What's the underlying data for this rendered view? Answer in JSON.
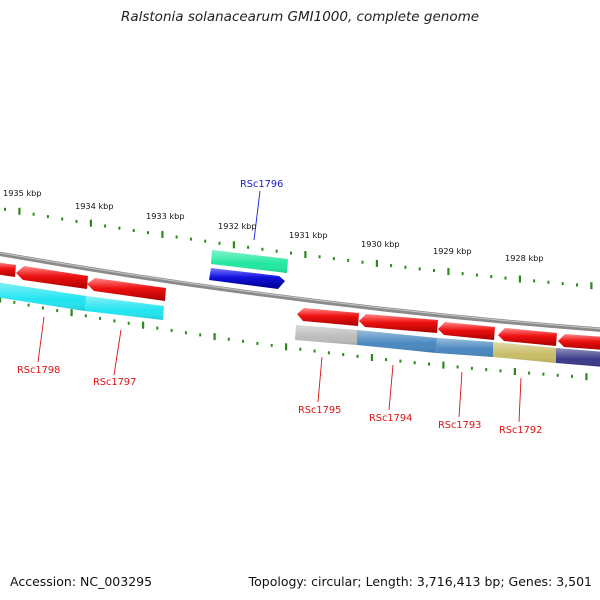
{
  "title": "Ralstonia solanacearum GMI1000, complete genome",
  "footer": {
    "accession": "Accession: NC_003295",
    "summary": "Topology: circular; Length: 3,716,413 bp; Genes: 3,501"
  },
  "colors": {
    "backbone": "#8a8a8a",
    "tick": "#2a8a1a",
    "label_forward": "#1a1acc",
    "label_reverse": "#dd1111"
  },
  "ticks": [
    "1935 kbp",
    "1934 kbp",
    "1933 kbp",
    "1932 kbp",
    "1931 kbp",
    "1930 kbp",
    "1929 kbp",
    "1928 kbp"
  ],
  "genes": [
    {
      "name": "RSc1796",
      "strand": "forward",
      "cds_color": "#1111dd",
      "band_color": "#22e8a0"
    },
    {
      "name": "RSc1798",
      "strand": "reverse",
      "cds_color": "#ee1111",
      "band_color": "#22e5f0"
    },
    {
      "name": "RSc1797",
      "strand": "reverse",
      "cds_color": "#ee1111",
      "band_color": "#22e5f0"
    },
    {
      "name": "RSc1795",
      "strand": "reverse",
      "cds_color": "#ee1111",
      "band_color": "#bcbcbc"
    },
    {
      "name": "RSc1794",
      "strand": "reverse",
      "cds_color": "#ee1111",
      "band_color": "#4a88c0"
    },
    {
      "name": "RSc1793",
      "strand": "reverse",
      "cds_color": "#ee1111",
      "band_color": "#4a88c0"
    },
    {
      "name": "RSc1792",
      "strand": "reverse",
      "cds_color": "#ee1111",
      "band_color": "#c8bd66"
    }
  ]
}
